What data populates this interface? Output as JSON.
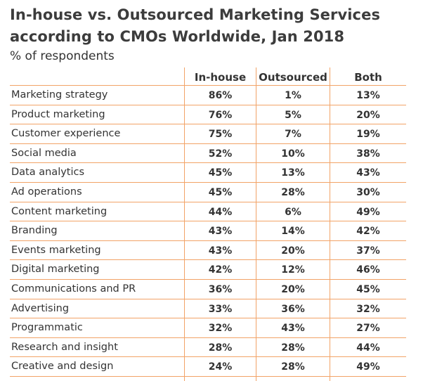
{
  "title": "In-house vs. Outsourced Marketing Services according to CMOs Worldwide, Jan 2018",
  "subtitle": "% of respondents",
  "columns": [
    "In-house",
    "Outsourced",
    "Both"
  ],
  "accent_color": "#f2a367",
  "chart_data": {
    "type": "table",
    "title": "In-house vs. Outsourced Marketing Services according to CMOs Worldwide, Jan 2018",
    "subtitle": "% of respondents",
    "columns": [
      "In-house",
      "Outsourced",
      "Both"
    ],
    "rows": [
      {
        "label": "Marketing strategy",
        "values": [
          "86%",
          "1%",
          "13%"
        ]
      },
      {
        "label": "Product marketing",
        "values": [
          "76%",
          "5%",
          "20%"
        ]
      },
      {
        "label": "Customer experience",
        "values": [
          "75%",
          "7%",
          "19%"
        ]
      },
      {
        "label": "Social media",
        "values": [
          "52%",
          "10%",
          "38%"
        ]
      },
      {
        "label": "Data analytics",
        "values": [
          "45%",
          "13%",
          "43%"
        ]
      },
      {
        "label": "Ad operations",
        "values": [
          "45%",
          "28%",
          "30%"
        ]
      },
      {
        "label": "Content marketing",
        "values": [
          "44%",
          "6%",
          "49%"
        ]
      },
      {
        "label": "Branding",
        "values": [
          "43%",
          "14%",
          "42%"
        ]
      },
      {
        "label": "Events marketing",
        "values": [
          "43%",
          "20%",
          "37%"
        ]
      },
      {
        "label": "Digital marketing",
        "values": [
          "42%",
          "12%",
          "46%"
        ]
      },
      {
        "label": "Communications and PR",
        "values": [
          "36%",
          "20%",
          "45%"
        ]
      },
      {
        "label": "Advertising",
        "values": [
          "33%",
          "36%",
          "32%"
        ]
      },
      {
        "label": "Programmatic",
        "values": [
          "32%",
          "43%",
          "27%"
        ]
      },
      {
        "label": "Research and insight",
        "values": [
          "28%",
          "28%",
          "44%"
        ]
      },
      {
        "label": "Creative and design",
        "values": [
          "24%",
          "28%",
          "49%"
        ]
      }
    ]
  }
}
